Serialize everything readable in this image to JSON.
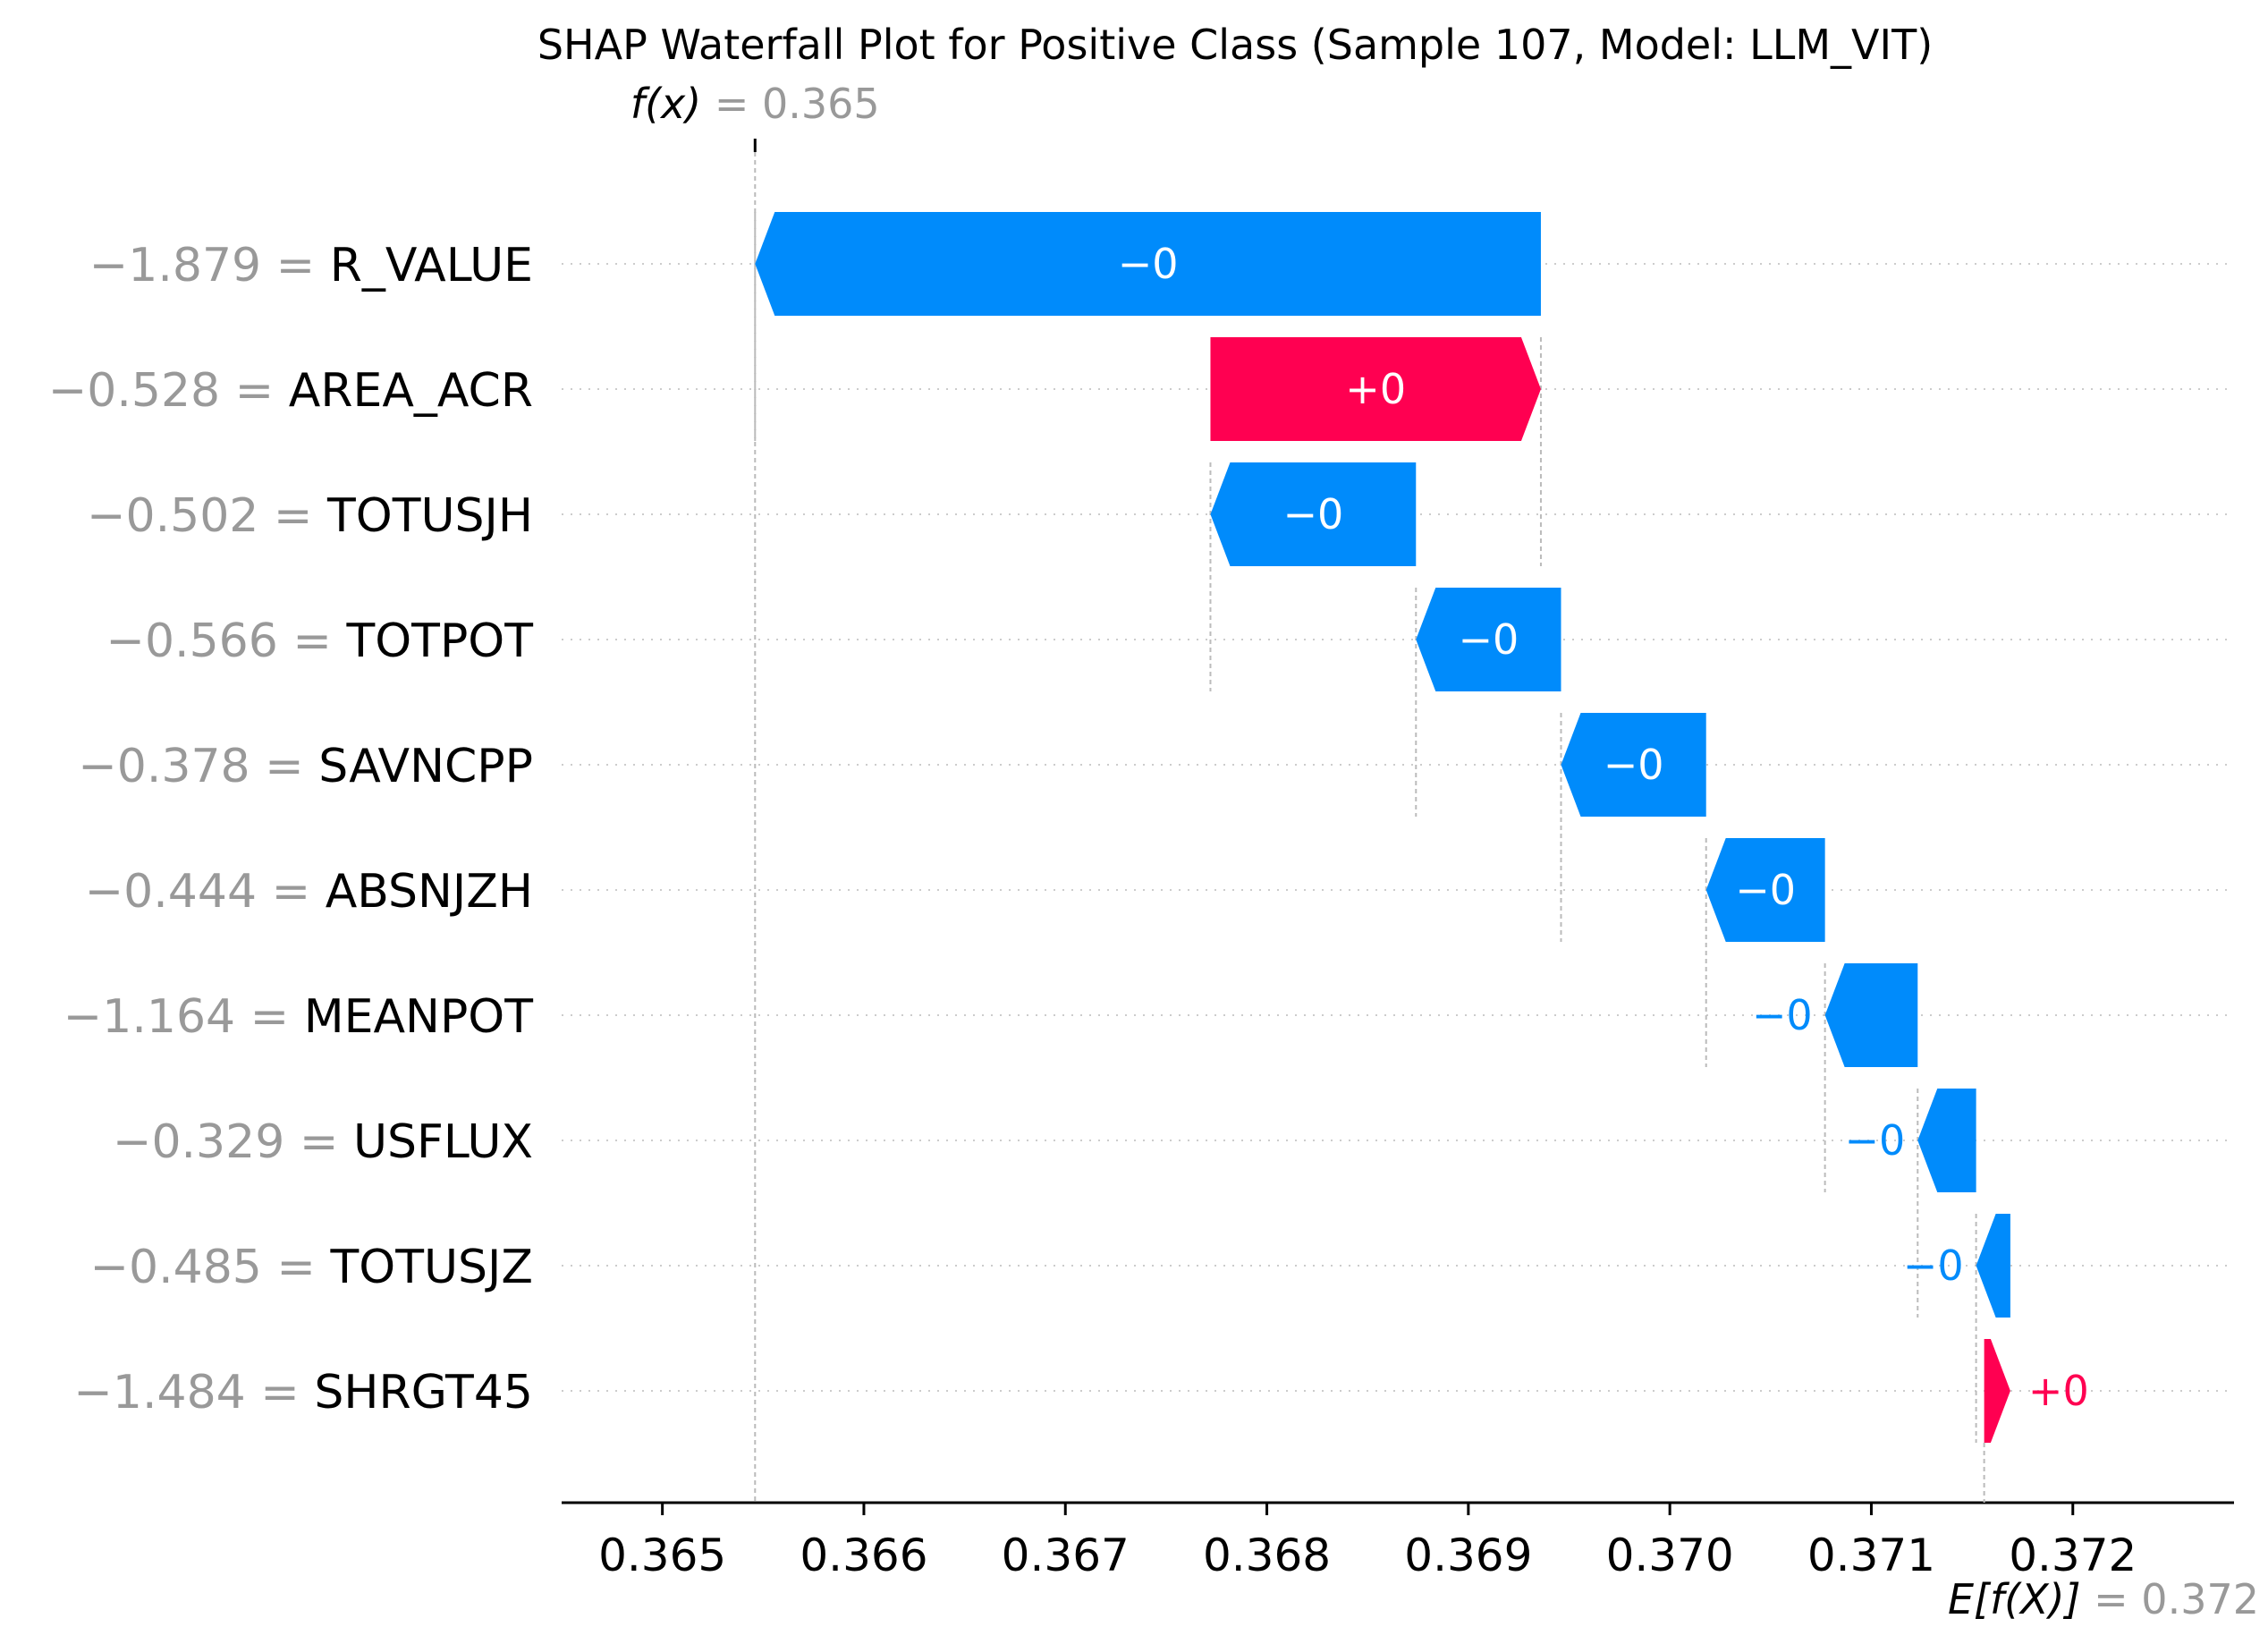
{
  "chart_data": {
    "type": "waterfall",
    "title": "SHAP Waterfall Plot for Positive Class (Sample 107, Model: LLM_VIT)",
    "fx": {
      "label": "f(x)",
      "value": "0.365",
      "x": 0.36546
    },
    "efx": {
      "label": "E[f(X)]",
      "value": "0.372",
      "x": 0.37156
    },
    "xlim": [
      0.3645,
      0.3728
    ],
    "ticks": [
      {
        "v": 0.365,
        "label": "0.365"
      },
      {
        "v": 0.366,
        "label": "0.366"
      },
      {
        "v": 0.367,
        "label": "0.367"
      },
      {
        "v": 0.368,
        "label": "0.368"
      },
      {
        "v": 0.369,
        "label": "0.369"
      },
      {
        "v": 0.37,
        "label": "0.370"
      },
      {
        "v": 0.371,
        "label": "0.371"
      },
      {
        "v": 0.372,
        "label": "0.372"
      }
    ],
    "features": [
      {
        "name": "R_VALUE",
        "value": "−1.879",
        "start": 0.36936,
        "end": 0.36546,
        "label": "−0",
        "sign": "neg"
      },
      {
        "name": "AREA_ACR",
        "value": "−0.528",
        "start": 0.36772,
        "end": 0.36936,
        "label": "+0",
        "sign": "pos"
      },
      {
        "name": "TOTUSJH",
        "value": "−0.502",
        "start": 0.36874,
        "end": 0.36772,
        "label": "−0",
        "sign": "neg"
      },
      {
        "name": "TOTPOT",
        "value": "−0.566",
        "start": 0.36946,
        "end": 0.36874,
        "label": "−0",
        "sign": "neg"
      },
      {
        "name": "SAVNCPP",
        "value": "−0.378",
        "start": 0.37018,
        "end": 0.36946,
        "label": "−0",
        "sign": "neg"
      },
      {
        "name": "ABSNJZH",
        "value": "−0.444",
        "start": 0.37077,
        "end": 0.37018,
        "label": "−0",
        "sign": "neg"
      },
      {
        "name": "MEANPOT",
        "value": "−1.164",
        "start": 0.37123,
        "end": 0.37077,
        "label": "−0",
        "sign": "neg"
      },
      {
        "name": "USFLUX",
        "value": "−0.329",
        "start": 0.37152,
        "end": 0.37123,
        "label": "−0",
        "sign": "neg"
      },
      {
        "name": "TOTUSJZ",
        "value": "−0.485",
        "start": 0.37169,
        "end": 0.37152,
        "label": "−0",
        "sign": "neg"
      },
      {
        "name": "SHRGT45",
        "value": "−1.484",
        "start": 0.37156,
        "end": 0.37169,
        "label": "+0",
        "sign": "pos"
      }
    ],
    "colors": {
      "positive": "#ff0051",
      "negative": "#008bfb",
      "muted": "#999999"
    }
  }
}
